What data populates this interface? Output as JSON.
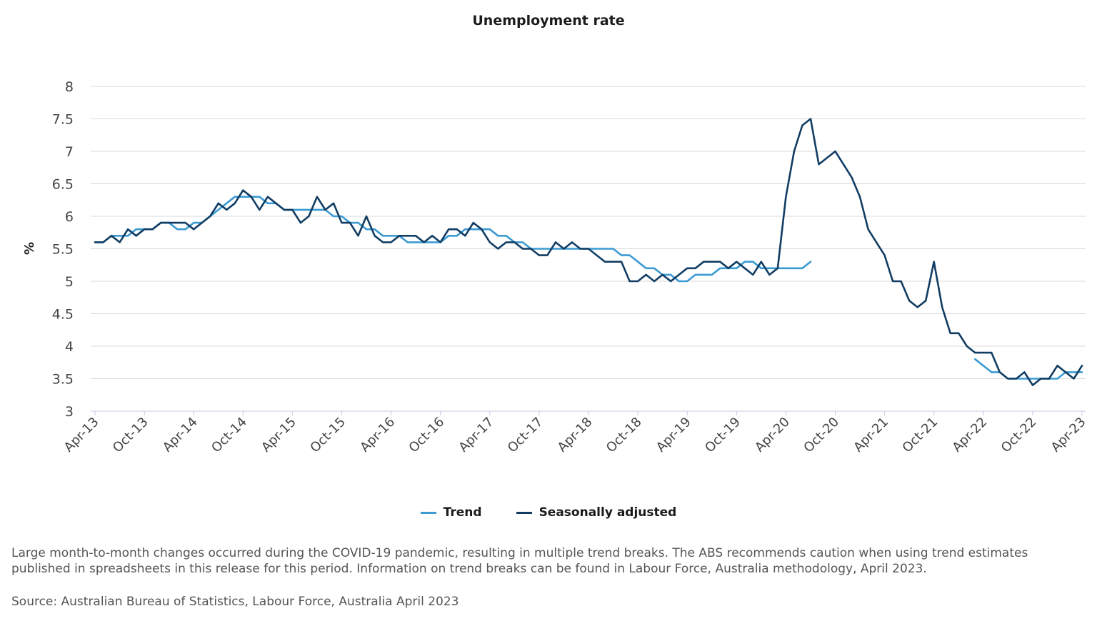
{
  "chart_data": {
    "type": "line",
    "title": "Unemployment rate",
    "xlabel": "",
    "ylabel": "%",
    "ylim": [
      3,
      8
    ],
    "y_ticks": [
      "8",
      "7.5",
      "7",
      "6.5",
      "6",
      "5.5",
      "5",
      "4.5",
      "4",
      "3.5",
      "3"
    ],
    "x_tick_labels": [
      "Apr-13",
      "Oct-13",
      "Apr-14",
      "Oct-14",
      "Apr-15",
      "Oct-15",
      "Apr-16",
      "Oct-16",
      "Apr-17",
      "Oct-17",
      "Apr-18",
      "Oct-18",
      "Apr-19",
      "Oct-19",
      "Apr-20",
      "Oct-20",
      "Apr-21",
      "Oct-21",
      "Apr-22",
      "Oct-22",
      "Apr-23"
    ],
    "start_month": "Apr-13",
    "end_month": "Apr-23",
    "series": [
      {
        "name": "Trend",
        "color": "#3b9bd3",
        "segments": [
          {
            "start_index": 0,
            "values": [
              5.6,
              5.6,
              5.7,
              5.7,
              5.7,
              5.8,
              5.8,
              5.8,
              5.9,
              5.9,
              5.8,
              5.8,
              5.9,
              5.9,
              6.0,
              6.1,
              6.2,
              6.3,
              6.3,
              6.3,
              6.3,
              6.2,
              6.2,
              6.1,
              6.1,
              6.1,
              6.1,
              6.1,
              6.1,
              6.0,
              6.0,
              5.9,
              5.9,
              5.8,
              5.8,
              5.7,
              5.7,
              5.7,
              5.6,
              5.6,
              5.6,
              5.6,
              5.6,
              5.7,
              5.7,
              5.8,
              5.8,
              5.8,
              5.8,
              5.7,
              5.7,
              5.6,
              5.6,
              5.5,
              5.5,
              5.5,
              5.5,
              5.5,
              5.5,
              5.5,
              5.5,
              5.5,
              5.5,
              5.5,
              5.4,
              5.4,
              5.3,
              5.2,
              5.2,
              5.1,
              5.1,
              5.0,
              5.0,
              5.1,
              5.1,
              5.1,
              5.2,
              5.2,
              5.2,
              5.3,
              5.3,
              5.2,
              5.2,
              5.2,
              5.2,
              5.2,
              5.2,
              5.3
            ]
          },
          {
            "start_index": 107,
            "values": [
              3.8,
              3.7,
              3.6,
              3.6,
              3.5,
              3.5,
              3.5,
              3.5,
              3.5,
              3.5,
              3.5,
              3.6,
              3.6,
              3.6
            ]
          }
        ]
      },
      {
        "name": "Seasonally adjusted",
        "color": "#123d63",
        "segments": [
          {
            "start_index": 0,
            "values": [
              5.6,
              5.6,
              5.7,
              5.6,
              5.8,
              5.7,
              5.8,
              5.8,
              5.9,
              5.9,
              5.9,
              5.9,
              5.8,
              5.9,
              6.0,
              6.2,
              6.1,
              6.2,
              6.4,
              6.3,
              6.1,
              6.3,
              6.2,
              6.1,
              6.1,
              5.9,
              6.0,
              6.3,
              6.1,
              6.2,
              5.9,
              5.9,
              5.7,
              6.0,
              5.7,
              5.6,
              5.6,
              5.7,
              5.7,
              5.7,
              5.6,
              5.7,
              5.6,
              5.8,
              5.8,
              5.7,
              5.9,
              5.8,
              5.6,
              5.5,
              5.6,
              5.6,
              5.5,
              5.5,
              5.4,
              5.4,
              5.6,
              5.5,
              5.6,
              5.5,
              5.5,
              5.4,
              5.3,
              5.3,
              5.3,
              5.0,
              5.0,
              5.1,
              5.0,
              5.1,
              5.0,
              5.1,
              5.2,
              5.2,
              5.3,
              5.3,
              5.3,
              5.2,
              5.3,
              5.2,
              5.1,
              5.3,
              5.1,
              5.2,
              6.3,
              7.0,
              7.4,
              7.5,
              6.8,
              6.9,
              7.0,
              6.8,
              6.6,
              6.3,
              5.8,
              5.6,
              5.4,
              5.0,
              5.0,
              4.7,
              4.6,
              4.7,
              5.3,
              4.6,
              4.2,
              4.2,
              4.0,
              3.9,
              3.9,
              3.9,
              3.6,
              3.5,
              3.5,
              3.6,
              3.4,
              3.5,
              3.5,
              3.7,
              3.6,
              3.5,
              3.7
            ]
          }
        ]
      }
    ]
  },
  "legend": {
    "items": [
      {
        "label": "Trend",
        "color": "#3b9bd3"
      },
      {
        "label": "Seasonally adjusted",
        "color": "#123d63"
      }
    ]
  },
  "footnote": "Large month-to-month changes occurred during the COVID-19 pandemic, resulting in multiple trend breaks. The ABS recommends caution when using trend estimates published in spreadsheets in this release for this period. Information on trend breaks can be found in Labour Force, Australia methodology, April 2023.",
  "source": "Source: Australian Bureau of Statistics, Labour Force, Australia April 2023",
  "colors": {
    "grid": "#d9d9d9",
    "axis": "#c8c8e6",
    "text": "#444444"
  }
}
